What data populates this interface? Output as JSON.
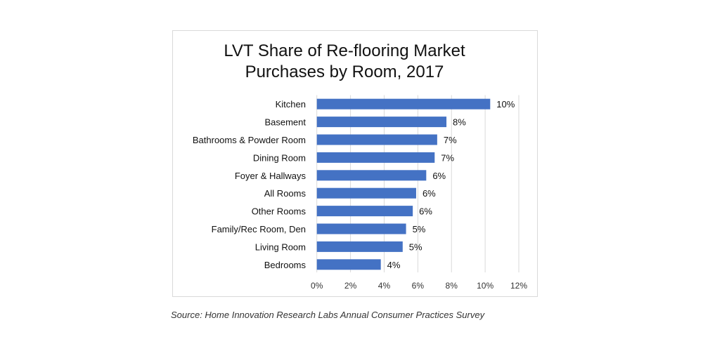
{
  "chart_data": {
    "type": "bar",
    "orientation": "horizontal",
    "title": [
      "LVT Share of Re-flooring Market",
      "Purchases by Room, 2017"
    ],
    "categories": [
      "Kitchen",
      "Basement",
      "Bathrooms & Powder Room",
      "Dining Room",
      "Foyer & Hallways",
      "All Rooms",
      "Other Rooms",
      "Family/Rec Room, Den",
      "Living Room",
      "Bedrooms"
    ],
    "values": [
      10.3,
      7.7,
      7.15,
      7.0,
      6.5,
      5.9,
      5.7,
      5.3,
      5.1,
      3.8
    ],
    "data_labels": [
      "10%",
      "8%",
      "7%",
      "7%",
      "6%",
      "6%",
      "6%",
      "5%",
      "5%",
      "4%"
    ],
    "xlim": [
      0,
      12
    ],
    "xticks": [
      0,
      2,
      4,
      6,
      8,
      10,
      12
    ],
    "xtick_labels": [
      "0%",
      "2%",
      "4%",
      "6%",
      "8%",
      "10%",
      "12%"
    ],
    "xlabel": "",
    "ylabel": "",
    "grid": true,
    "bar_color": "#4472c4"
  },
  "source": "Source: Home Innovation Research Labs Annual Consumer Practices Survey"
}
